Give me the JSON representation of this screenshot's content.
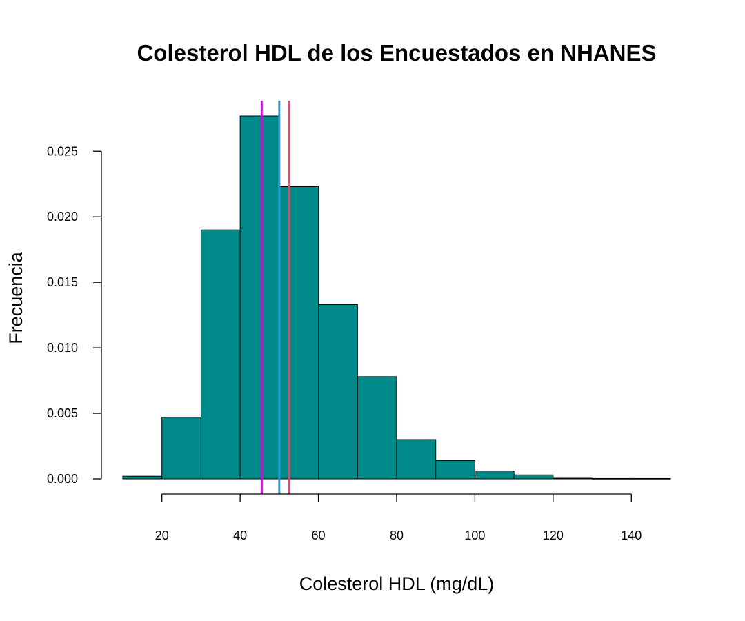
{
  "chart_data": {
    "type": "bar",
    "title": "Colesterol HDL de los Encuestados en NHANES",
    "xlabel": "Colesterol HDL (mg/dL)",
    "ylabel": "Frecuencia",
    "bins": [
      {
        "start": 10,
        "end": 20,
        "value": 0.0002
      },
      {
        "start": 20,
        "end": 30,
        "value": 0.0047
      },
      {
        "start": 30,
        "end": 40,
        "value": 0.019
      },
      {
        "start": 40,
        "end": 50,
        "value": 0.0277
      },
      {
        "start": 50,
        "end": 60,
        "value": 0.0223
      },
      {
        "start": 60,
        "end": 70,
        "value": 0.0133
      },
      {
        "start": 70,
        "end": 80,
        "value": 0.0078
      },
      {
        "start": 80,
        "end": 90,
        "value": 0.003
      },
      {
        "start": 90,
        "end": 100,
        "value": 0.0014
      },
      {
        "start": 100,
        "end": 110,
        "value": 0.0006
      },
      {
        "start": 110,
        "end": 120,
        "value": 0.0003
      },
      {
        "start": 120,
        "end": 130,
        "value": 5e-05
      },
      {
        "start": 130,
        "end": 140,
        "value": 3e-05
      },
      {
        "start": 140,
        "end": 150,
        "value": 3e-05
      }
    ],
    "xlim": [
      10,
      150
    ],
    "ylim": [
      0,
      0.0277
    ],
    "x_ticks": [
      20,
      40,
      60,
      80,
      100,
      120,
      140
    ],
    "x_tick_labels": [
      "20",
      "40",
      "60",
      "80",
      "100",
      "120",
      "140"
    ],
    "y_ticks": [
      0,
      0.005,
      0.01,
      0.015,
      0.02,
      0.025
    ],
    "y_tick_labels": [
      "0.000",
      "0.005",
      "0.010",
      "0.015",
      "0.020",
      "0.025"
    ],
    "vertical_lines": [
      {
        "x": 45.5,
        "color": "#b01fbf"
      },
      {
        "x": 50.0,
        "color": "#2a9ad6"
      },
      {
        "x": 52.5,
        "color": "#d4506a"
      }
    ],
    "bar_color": "#008b8b",
    "grid": false
  }
}
